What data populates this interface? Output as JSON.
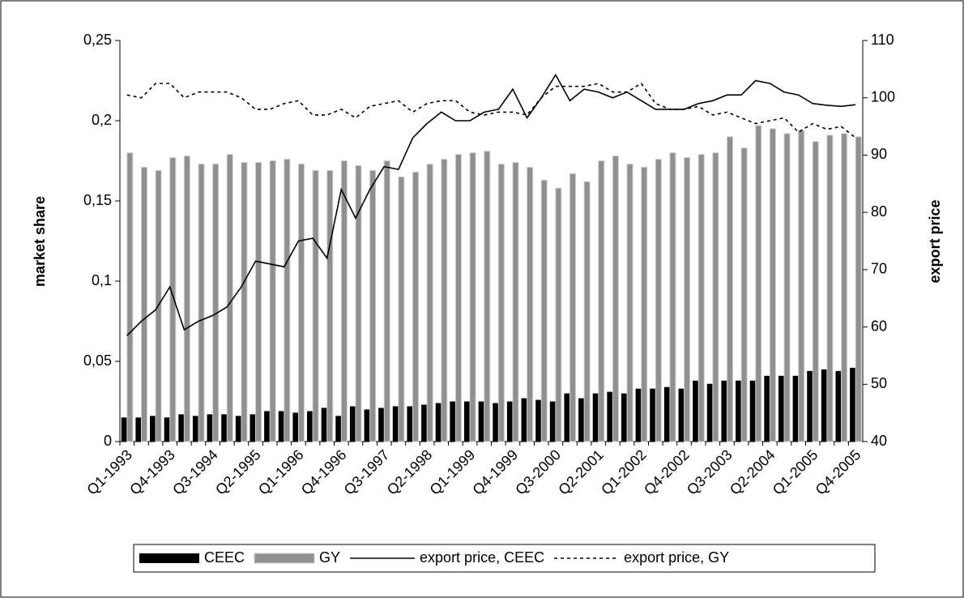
{
  "chart_data": {
    "type": "bar",
    "categories": [
      "Q1-1993",
      null,
      null,
      "Q4-1993",
      null,
      null,
      "Q3-1994",
      null,
      null,
      "Q2-1995",
      null,
      null,
      "Q1-1996",
      null,
      null,
      "Q4-1996",
      null,
      null,
      "Q3-1997",
      null,
      null,
      "Q2-1998",
      null,
      null,
      "Q1-1999",
      null,
      null,
      "Q4-1999",
      null,
      null,
      "Q3-2000",
      null,
      null,
      "Q2-2001",
      null,
      null,
      "Q1-2002",
      null,
      null,
      "Q4-2002",
      null,
      null,
      "Q3-2003",
      null,
      null,
      "Q2-2004",
      null,
      null,
      "Q1-2005",
      null,
      null,
      "Q4-2005"
    ],
    "ylabel": "market share",
    "y2label": "export price",
    "ylim": [
      0,
      0.25
    ],
    "yticks": [
      0,
      {
        "value": 0.05,
        "label": "0,05"
      },
      {
        "value": 0.1,
        "label": "0,1"
      },
      {
        "value": 0.15,
        "label": "0,15"
      },
      {
        "value": 0.2,
        "label": "0,2"
      },
      {
        "value": 0.25,
        "label": "0,25"
      }
    ],
    "y2lim": [
      40,
      110
    ],
    "y2ticks": [
      40,
      50,
      60,
      70,
      80,
      90,
      100,
      110
    ],
    "legend": "bottom",
    "series": [
      {
        "name": "CEEC",
        "type": "bar",
        "color": "#000000",
        "values": [
          0.015,
          0.015,
          0.016,
          0.015,
          0.017,
          0.016,
          0.017,
          0.017,
          0.016,
          0.017,
          0.019,
          0.019,
          0.018,
          0.019,
          0.021,
          0.016,
          0.022,
          0.02,
          0.021,
          0.022,
          0.022,
          0.023,
          0.024,
          0.025,
          0.025,
          0.025,
          0.024,
          0.025,
          0.027,
          0.026,
          0.025,
          0.03,
          0.027,
          0.03,
          0.031,
          0.03,
          0.033,
          0.033,
          0.034,
          0.033,
          0.038,
          0.036,
          0.038,
          0.038,
          0.038,
          0.041,
          0.041,
          0.041,
          0.044,
          0.045,
          0.044,
          0.046
        ]
      },
      {
        "name": "GY",
        "type": "bar",
        "color": "#909090",
        "values": [
          0.18,
          0.171,
          0.169,
          0.177,
          0.178,
          0.173,
          0.173,
          0.179,
          0.174,
          0.174,
          0.175,
          0.176,
          0.173,
          0.169,
          0.169,
          0.175,
          0.172,
          0.169,
          0.175,
          0.165,
          0.168,
          0.173,
          0.176,
          0.179,
          0.18,
          0.181,
          0.173,
          0.174,
          0.171,
          0.163,
          0.158,
          0.167,
          0.162,
          0.175,
          0.178,
          0.173,
          0.171,
          0.176,
          0.18,
          0.177,
          0.179,
          0.18,
          0.19,
          0.183,
          0.197,
          0.195,
          0.192,
          0.194,
          0.187,
          0.191,
          0.192,
          0.19
        ]
      },
      {
        "name": "export price, CEEC",
        "type": "line",
        "axis": "y2",
        "color": "#000000",
        "style": "solid",
        "values": [
          58.5,
          61,
          63,
          67,
          59.5,
          61,
          62,
          63.5,
          67,
          71.5,
          71,
          70.5,
          75,
          75.5,
          72,
          84,
          79,
          84,
          88,
          87.5,
          93,
          95.5,
          97.5,
          96,
          96,
          97.5,
          98,
          101.5,
          96.5,
          100,
          104,
          99.5,
          101.5,
          101,
          100,
          101,
          99.5,
          98,
          98,
          98,
          99,
          99.5,
          100.5,
          100.5,
          103,
          102.5,
          101,
          100.5,
          99,
          98.7,
          98.5,
          98.8
        ]
      },
      {
        "name": "export price, GY",
        "type": "line",
        "axis": "y2",
        "color": "#000000",
        "style": "dashed",
        "values": [
          100.5,
          100,
          102.5,
          102.5,
          100,
          101,
          101,
          101,
          100,
          98,
          98,
          99,
          99.5,
          97,
          97,
          98,
          96.5,
          98.5,
          99,
          99.5,
          97.5,
          99,
          99.5,
          99.5,
          97.5,
          97,
          97.5,
          97.5,
          97,
          100,
          102,
          102,
          102,
          102.5,
          101,
          101,
          102.5,
          99,
          98,
          98,
          98.5,
          97,
          97.5,
          96.5,
          95.5,
          96,
          96.5,
          94,
          95.5,
          94.5,
          95,
          93
        ]
      }
    ]
  }
}
